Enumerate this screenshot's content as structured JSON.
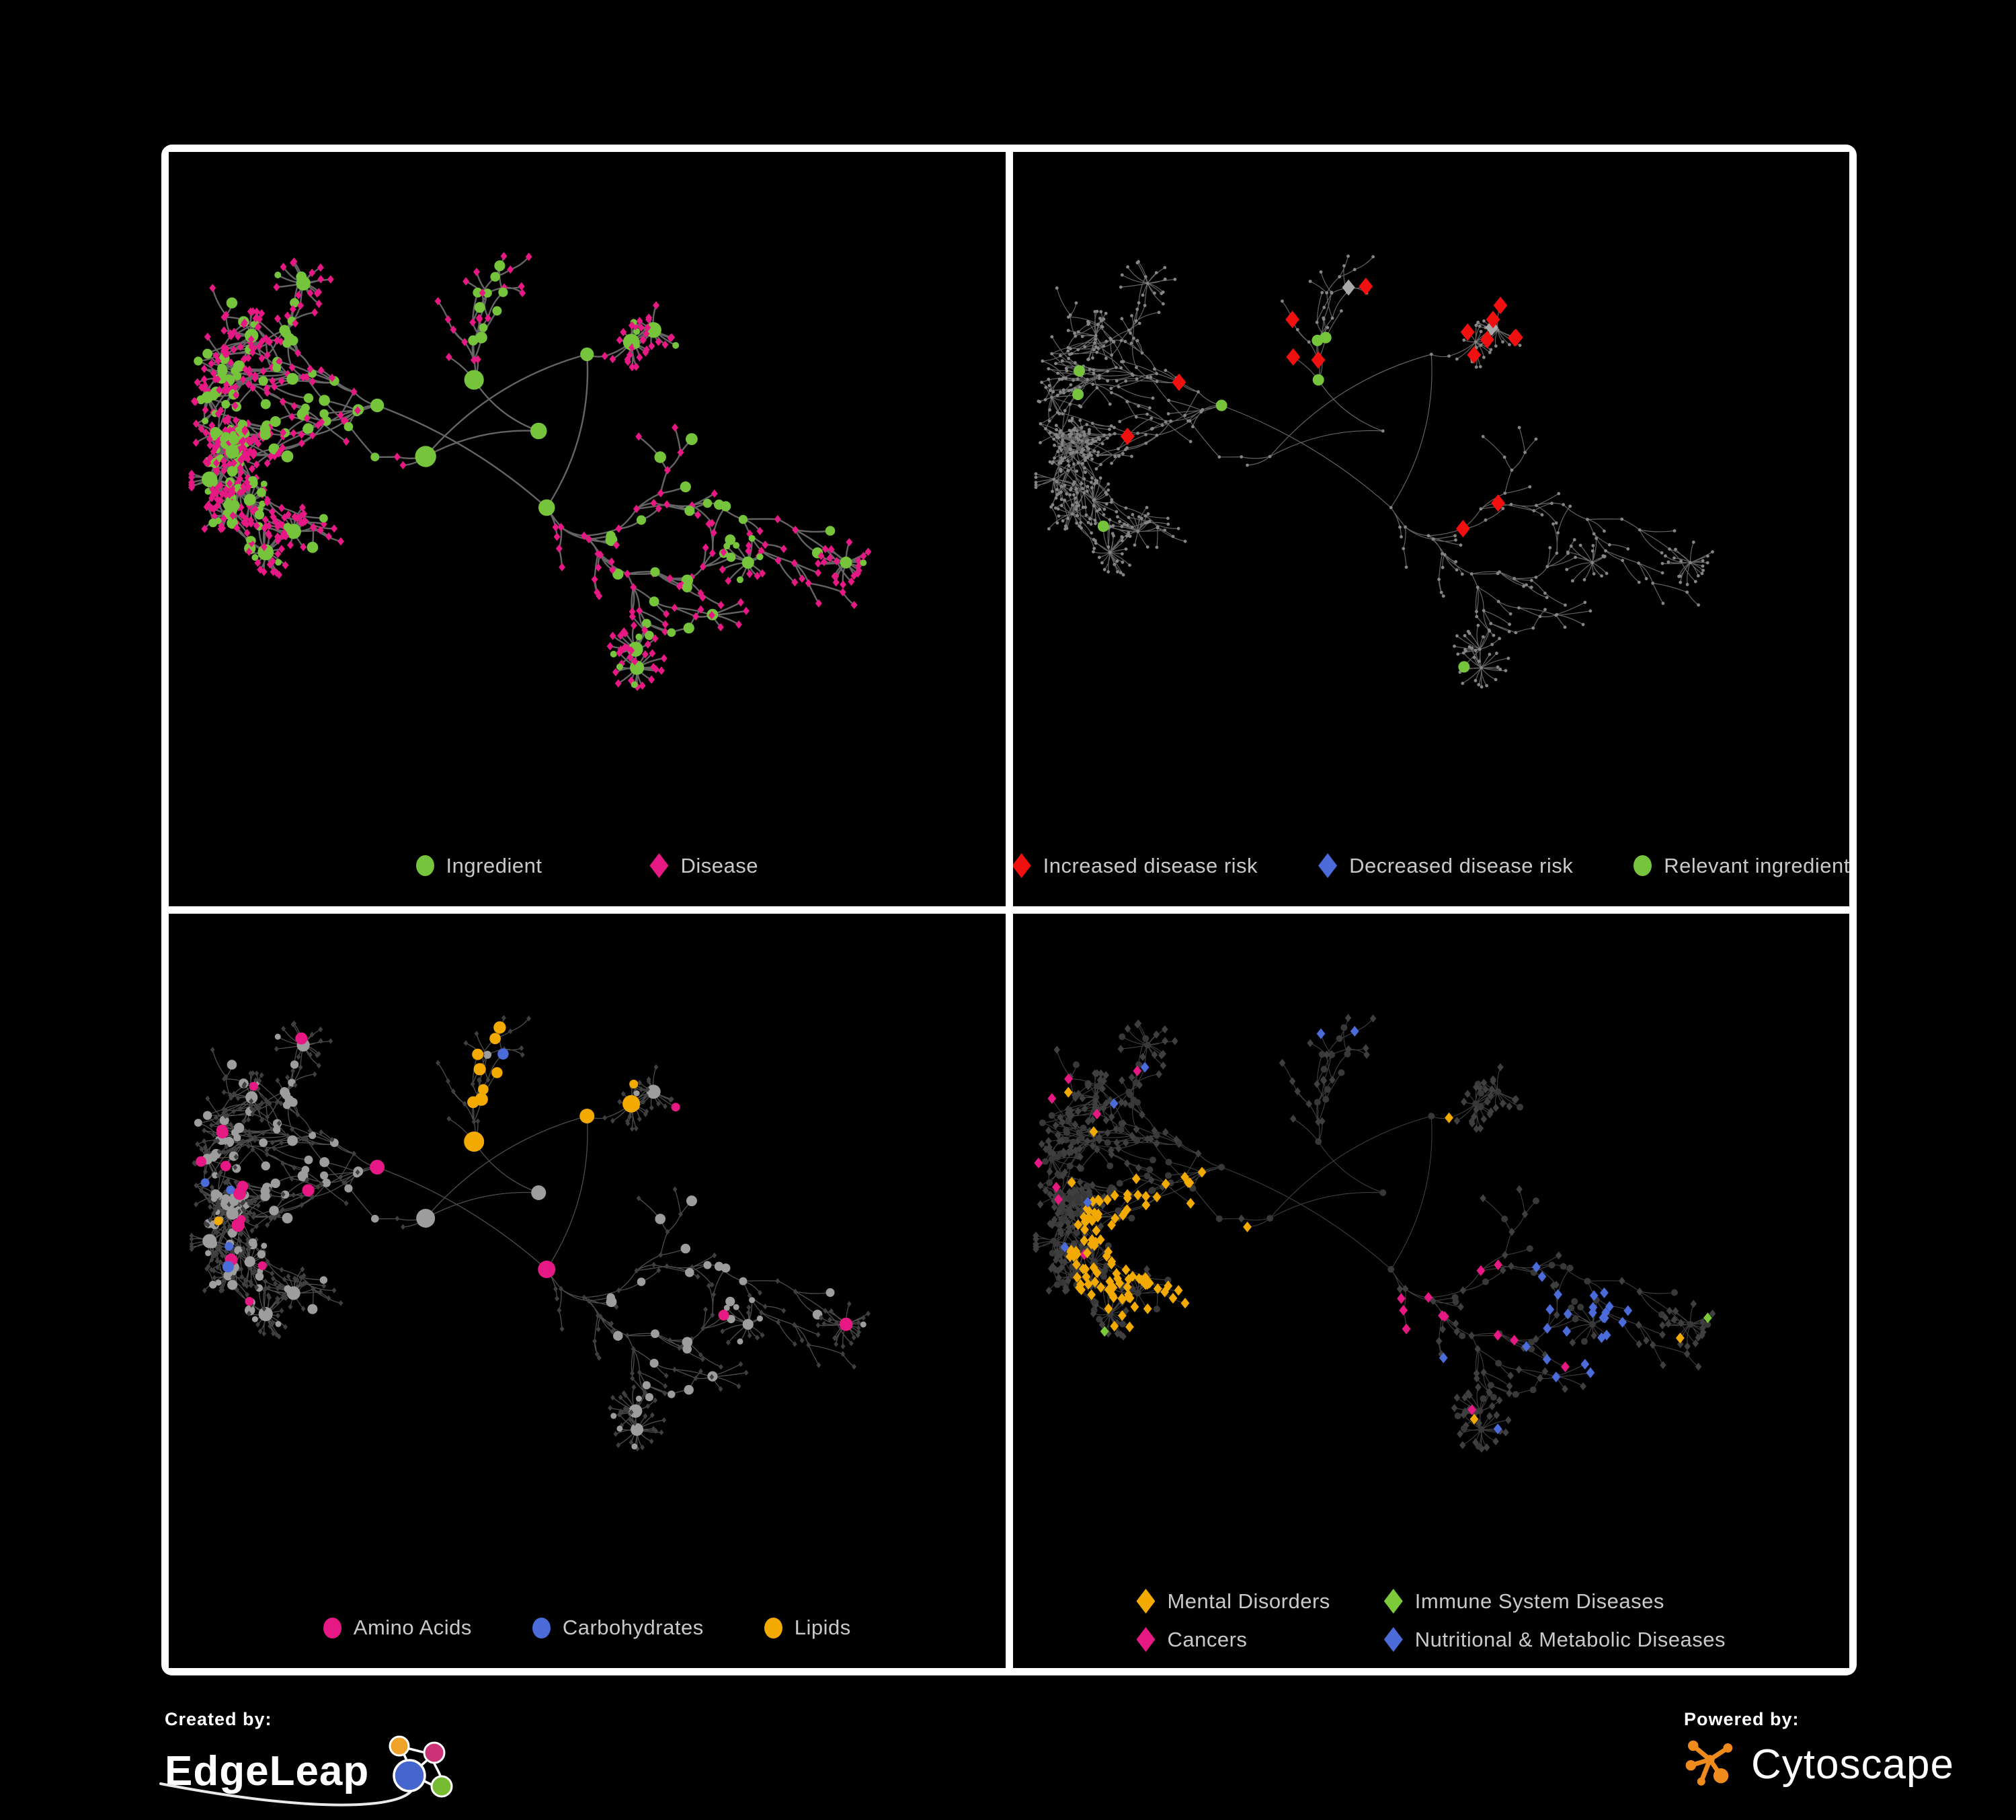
{
  "branding": {
    "created_by_label": "Created by:",
    "created_by_name": "EdgeLeap",
    "powered_by_label": "Powered by:",
    "powered_by_name": "Cytoscape"
  },
  "colors": {
    "background": "#000000",
    "frame": "#ffffff",
    "legend_text": "#c9c9c9",
    "ingredient_green": "#76c33c",
    "disease_pink": "#e61884",
    "risk_red": "#f01010",
    "risk_blue": "#4a6bd8",
    "silver": "#a9a9a9",
    "neutral_gray": "#9d9d9d",
    "dark_diamond": "#3f3f3f",
    "dark_circle": "#383838",
    "tiny_dot_gray": "#858585",
    "lipid_amber": "#f2a900",
    "immune_green": "#7cc93a",
    "edge_p1": "#696969",
    "edge_p2": "#7a7a7a",
    "edge_p3": "#9a9a9a",
    "edge_p4": "#9a9a9a",
    "edgeleap_orange": "#f0a32a",
    "edgeleap_pink": "#cc3377",
    "edgeleap_blue": "#4466cc",
    "edgeleap_green": "#77bb33",
    "cytoscape_orange": "#ef8a1c"
  },
  "panels": [
    {
      "name": "ingredient-disease-network",
      "legend": [
        {
          "label": "Ingredient",
          "shape": "circle",
          "color": "#76c33c"
        },
        {
          "label": "Disease",
          "shape": "diamond",
          "color": "#e61884"
        }
      ],
      "legend_layout": "two"
    },
    {
      "name": "disease-risk-network",
      "legend": [
        {
          "label": "Increased disease risk",
          "shape": "diamond",
          "color": "#f01010"
        },
        {
          "label": "Decreased disease risk",
          "shape": "diamond",
          "color": "#4a6bd8"
        },
        {
          "label": "Relevant ingredient",
          "shape": "circle",
          "color": "#76c33c"
        }
      ],
      "legend_layout": "row"
    },
    {
      "name": "nutrient-class-network",
      "legend": [
        {
          "label": "Amino Acids",
          "shape": "circle",
          "color": "#e61884"
        },
        {
          "label": "Carbohydrates",
          "shape": "circle",
          "color": "#4a6bd8"
        },
        {
          "label": "Lipids",
          "shape": "circle",
          "color": "#f2a900"
        }
      ],
      "legend_layout": "row"
    },
    {
      "name": "disease-class-network",
      "legend": [
        {
          "label": "Mental Disorders",
          "shape": "diamond",
          "color": "#f2a900"
        },
        {
          "label": "Immune System Diseases",
          "shape": "diamond",
          "color": "#7cc93a"
        },
        {
          "label": "Cancers",
          "shape": "diamond",
          "color": "#e61884"
        },
        {
          "label": "Nutritional & Metabolic Diseases",
          "shape": "diamond",
          "color": "#4a6bd8"
        }
      ],
      "legend_layout": "grid2"
    }
  ],
  "network": {
    "seed": 1337,
    "target_nodes": 640,
    "cross_edges": 90,
    "ingredient_ratio": 0.3
  }
}
